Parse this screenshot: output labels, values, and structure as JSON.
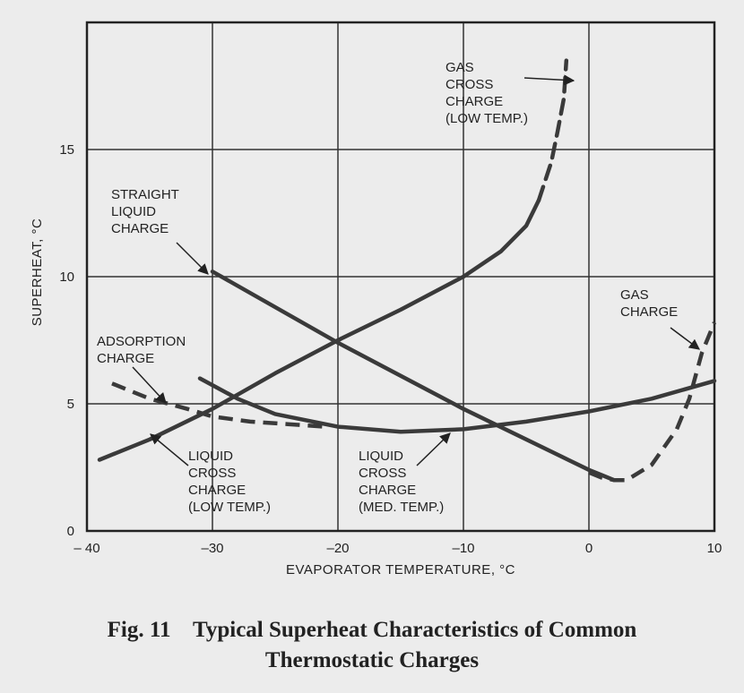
{
  "chart_data": {
    "type": "line",
    "xlabel": "EVAPORATOR TEMPERATURE,  °C",
    "ylabel": "SUPERHEAT,  °C",
    "xlim": [
      -40,
      10
    ],
    "ylim": [
      0,
      20
    ],
    "x_ticks": [
      -40,
      -30,
      -20,
      -10,
      0,
      10
    ],
    "x_tick_labels": [
      "– 40",
      "–30",
      "–20",
      "–10",
      "0",
      "10"
    ],
    "y_ticks": [
      0,
      5,
      10,
      15
    ],
    "y_tick_labels": [
      "0",
      "5",
      "10",
      "15"
    ],
    "grid": true,
    "series": [
      {
        "name": "GAS CROSS CHARGE (LOW TEMP.)",
        "style": "solid-then-dashed",
        "x": [
          -39,
          -35,
          -30,
          -25,
          -20,
          -15,
          -10,
          -7,
          -5,
          -4,
          -3,
          -2.5,
          -2,
          -1.8
        ],
        "y": [
          2.8,
          3.6,
          4.8,
          6.2,
          7.5,
          8.7,
          10.0,
          11.0,
          12.0,
          13.0,
          14.5,
          15.7,
          17.0,
          18.5
        ],
        "dash_from_x": -4
      },
      {
        "name": "STRAIGHT LIQUID CHARGE",
        "style": "solid",
        "x": [
          -30,
          -20,
          -10,
          0,
          1,
          2
        ],
        "y": [
          10.2,
          7.4,
          4.8,
          2.4,
          2.2,
          2.0
        ]
      },
      {
        "name": "GAS CHARGE",
        "style": "dashed",
        "x": [
          0,
          1,
          2,
          3,
          5,
          7,
          8,
          9,
          10
        ],
        "y": [
          2.3,
          2.1,
          2.0,
          2.0,
          2.6,
          4.0,
          5.2,
          7.0,
          8.2
        ]
      },
      {
        "name": "ADSORPTION CHARGE",
        "style": "dashed",
        "x": [
          -38,
          -35,
          -32,
          -30,
          -27,
          -24,
          -21
        ],
        "y": [
          5.8,
          5.2,
          4.8,
          4.5,
          4.3,
          4.2,
          4.1
        ]
      },
      {
        "name": "LIQUID CROSS CHARGE (MED. TEMP.)",
        "style": "solid",
        "x": [
          -31,
          -28,
          -25,
          -20,
          -15,
          -10,
          -5,
          0,
          5,
          10
        ],
        "y": [
          6.0,
          5.2,
          4.6,
          4.1,
          3.9,
          4.0,
          4.3,
          4.7,
          5.2,
          5.9
        ]
      }
    ],
    "annotations": [
      {
        "lines": [
          "GAS",
          "CROSS",
          "CHARGE",
          "(LOW TEMP.)"
        ]
      },
      {
        "lines": [
          "STRAIGHT",
          "LIQUID",
          "CHARGE"
        ]
      },
      {
        "lines": [
          "GAS",
          "CHARGE"
        ]
      },
      {
        "lines": [
          "ADSORPTION",
          "CHARGE"
        ]
      },
      {
        "lines": [
          "LIQUID",
          "CROSS",
          "CHARGE",
          "(LOW TEMP.)"
        ]
      },
      {
        "lines": [
          "LIQUID",
          "CROSS",
          "CHARGE",
          "(MED. TEMP.)"
        ]
      }
    ]
  },
  "caption": {
    "line1": "Fig. 11    Typical Superheat Characteristics of Common",
    "line2": "Thermostatic Charges"
  }
}
